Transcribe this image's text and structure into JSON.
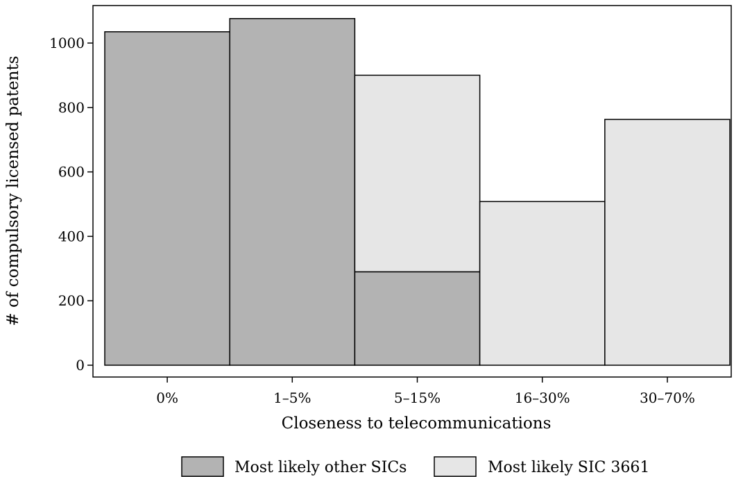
{
  "chart_data": {
    "type": "bar",
    "stacked": true,
    "categories": [
      "0%",
      "1–5%",
      "5–15%",
      "16–30%",
      "30–70%"
    ],
    "series": [
      {
        "name": "Most likely other SICs",
        "values": [
          1035,
          1076,
          290,
          0,
          0
        ],
        "color": "#b3b3b3"
      },
      {
        "name": "Most likely SIC 3661",
        "values": [
          0,
          0,
          610,
          508,
          763
        ],
        "color": "#e6e6e6"
      }
    ],
    "xlabel": "Closeness to telecommunications",
    "ylabel": "# of compulsory licensed patents",
    "ylim": [
      0,
      1130
    ],
    "yticks": [
      0,
      200,
      400,
      600,
      800,
      1000
    ],
    "grid": false,
    "legend": "bottom"
  }
}
